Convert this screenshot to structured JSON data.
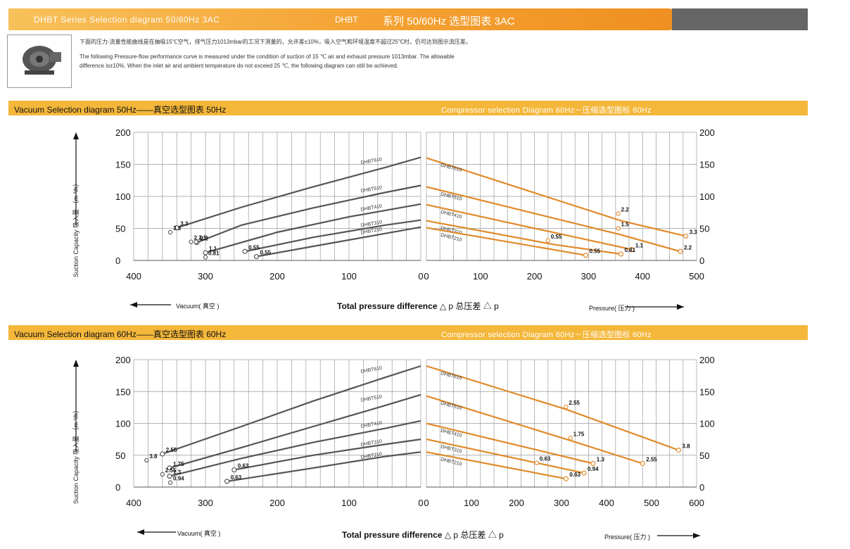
{
  "header": {
    "title_en": "DHBT Series Selection diagram 50/60Hz 3AC",
    "title_mid": "DHBT",
    "title_cn": "系列 50/60Hz 选型图表 3AC"
  },
  "intro": {
    "line_cn": "下面的压力-流量性能曲线是在抽吸15℃空气，排气压力1013mbar的工况下测量的，允许差±10%，吸入空气和环境温度不超过25℃时，仍可达到图示流压差。",
    "line_en1": "The following Pressure-flow performance curve is measured under the condition of suction of 15 ℃ air and exhaust pressure 1013mbar. The allowable",
    "line_en2": "difference is±10%. When the inlet air and ambient temperature do not exceed 25 ℃, the following diagram can still be achieved."
  },
  "colors": {
    "accent": "#f4b73a",
    "curve_vacuum": "#555555",
    "curve_pressure": "#e08a2a",
    "grid": "#9a9a9a"
  },
  "common": {
    "y_axis_label": "Suction Capacity 吸入量 （m ³/h）",
    "x_caption": "Total pressure difference",
    "x_caption_cn": "△ p 总压差 △ p",
    "vacuum_label": "Vacuum( 真空 )",
    "pressure_label": "Pressure( 压力 )"
  },
  "section50": {
    "left": "Vacuum Selection diagram 50Hz——真空选型图表 50Hz",
    "right": "Compressor selection Diagram 60Hz－压缩选型图标 60Hz"
  },
  "section60": {
    "left": "Vacuum Selection diagram 60Hz——真空选型图表 60Hz",
    "right": "Compressor selection Diagram 60Hz－压缩选型图标 60Hz"
  },
  "chart_data": [
    {
      "type": "line",
      "title": "Vacuum Selection diagram 50Hz——真空选型图表 50Hz",
      "xlabel": "Vacuum( 真空 )",
      "ylabel": "Suction Capacity 吸入量 （m ³/h）",
      "xlim": [
        400,
        0
      ],
      "ylim": [
        0,
        200
      ],
      "x_ticks": [
        400,
        300,
        200,
        100,
        0
      ],
      "y_ticks": [
        0,
        50,
        100,
        150,
        200
      ],
      "series": [
        {
          "name": "DHBT610",
          "x": [
            340,
            250,
            150,
            50,
            0
          ],
          "y": [
            51,
            83,
            115,
            145,
            161
          ],
          "end_label": "3.3"
        },
        {
          "name": "DHBT510",
          "x": [
            312,
            250,
            150,
            50,
            0
          ],
          "y": [
            28,
            55,
            82,
            106,
            117
          ],
          "end_label": "2.2"
        },
        {
          "name": "DHBT410",
          "x": [
            300,
            200,
            100,
            0
          ],
          "y": [
            12,
            44,
            68,
            88
          ],
          "end_label": "1.1"
        },
        {
          "name": "DHBT310",
          "x": [
            245,
            150,
            50,
            0
          ],
          "y": [
            14,
            36,
            55,
            63
          ],
          "end_label": "0.55"
        },
        {
          "name": "DHBT210",
          "x": [
            229,
            150,
            50,
            0
          ],
          "y": [
            6,
            22,
            42,
            52
          ],
          "end_label": "0.55"
        }
      ],
      "extra_labels": [
        {
          "text": "3.3",
          "x": 349,
          "y": 44
        },
        {
          "text": "2.2",
          "x": 320,
          "y": 29
        },
        {
          "text": "1.5",
          "x": 313,
          "y": 29
        },
        {
          "text": "0.81",
          "x": 300,
          "y": 5
        }
      ]
    },
    {
      "type": "line",
      "title": "Compressor selection Diagram 60Hz－压缩选型图标 60Hz",
      "xlabel": "Pressure( 压力 )",
      "ylabel": "",
      "xlim": [
        0,
        500
      ],
      "ylim": [
        0,
        200
      ],
      "x_ticks": [
        0,
        100,
        200,
        300,
        400,
        500
      ],
      "y_ticks": [
        0,
        50,
        100,
        150,
        200
      ],
      "series": [
        {
          "name": "DHBT610",
          "x": [
            0,
            360,
            480
          ],
          "y": [
            160,
            62,
            38
          ],
          "end_label": "3.3"
        },
        {
          "name": "DHBT510",
          "x": [
            0,
            360,
            470
          ],
          "y": [
            115,
            40,
            14
          ],
          "end_label": "2.2"
        },
        {
          "name": "DHBT410",
          "x": [
            0,
            380
          ],
          "y": [
            87,
            17
          ],
          "end_label": "1.1"
        },
        {
          "name": "DHBT310",
          "x": [
            0,
            235,
            360
          ],
          "y": [
            62,
            25,
            10
          ],
          "end_label": "0.81"
        },
        {
          "name": "DHBT210",
          "x": [
            0,
            295
          ],
          "y": [
            51,
            8
          ],
          "end_label": "0.55"
        }
      ],
      "extra_labels": [
        {
          "text": "2.2",
          "x": 355,
          "y": 73
        },
        {
          "text": "1.5",
          "x": 355,
          "y": 50
        },
        {
          "text": "0.55",
          "x": 225,
          "y": 31
        }
      ]
    },
    {
      "type": "line",
      "title": "Vacuum Selection diagram 60Hz——真空选型图表 60Hz",
      "xlabel": "Vacuum( 真空 )",
      "ylabel": "Suction Capacity 吸入量 （m ³/h）",
      "xlim": [
        400,
        0
      ],
      "ylim": [
        0,
        200
      ],
      "x_ticks": [
        400,
        300,
        200,
        100,
        0
      ],
      "y_ticks": [
        0,
        50,
        100,
        150,
        200
      ],
      "series": [
        {
          "name": "DHBT610",
          "x": [
            360,
            250,
            150,
            50,
            0
          ],
          "y": [
            52,
            95,
            135,
            172,
            190
          ],
          "end_label": "2.55"
        },
        {
          "name": "DHBT510",
          "x": [
            350,
            250,
            150,
            50,
            0
          ],
          "y": [
            30,
            62,
            95,
            128,
            145
          ],
          "end_label": "1.75"
        },
        {
          "name": "DHBT410",
          "x": [
            350,
            250,
            150,
            50,
            0
          ],
          "y": [
            17,
            45,
            70,
            92,
            104
          ],
          "end_label": "1.3"
        },
        {
          "name": "DHBT310",
          "x": [
            260,
            150,
            50,
            0
          ],
          "y": [
            27,
            50,
            67,
            75
          ],
          "end_label": "0.63"
        },
        {
          "name": "DHBT210",
          "x": [
            270,
            150,
            50,
            0
          ],
          "y": [
            9,
            30,
            48,
            55
          ],
          "end_label": "0.63"
        }
      ],
      "extra_labels": [
        {
          "text": "3.8",
          "x": 382,
          "y": 42
        },
        {
          "text": "2.55",
          "x": 360,
          "y": 20
        },
        {
          "text": "0.94",
          "x": 349,
          "y": 7
        }
      ]
    },
    {
      "type": "line",
      "title": "Compressor selection Diagram 60Hz－压缩选型图标 60Hz",
      "xlabel": "Pressure( 压力 )",
      "ylabel": "",
      "xlim": [
        0,
        600
      ],
      "ylim": [
        0,
        200
      ],
      "x_ticks": [
        0,
        100,
        200,
        300,
        400,
        500,
        600
      ],
      "y_ticks": [
        0,
        50,
        100,
        150,
        200
      ],
      "series": [
        {
          "name": "DHBT610",
          "x": [
            0,
            310,
            560
          ],
          "y": [
            190,
            122,
            58
          ],
          "end_label": "3.8"
        },
        {
          "name": "DHBT510",
          "x": [
            0,
            320,
            480
          ],
          "y": [
            143,
            73,
            37
          ],
          "end_label": "2.55"
        },
        {
          "name": "DHBT410",
          "x": [
            0,
            370
          ],
          "y": [
            100,
            37
          ],
          "end_label": "1.3"
        },
        {
          "name": "DHBT310",
          "x": [
            0,
            350
          ],
          "y": [
            75,
            22
          ],
          "end_label": "0.94"
        },
        {
          "name": "DHBT210",
          "x": [
            0,
            310
          ],
          "y": [
            55,
            13
          ],
          "end_label": "0.63"
        }
      ],
      "extra_labels": [
        {
          "text": "2.55",
          "x": 310,
          "y": 126
        },
        {
          "text": "1.75",
          "x": 320,
          "y": 77
        },
        {
          "text": "0.63",
          "x": 245,
          "y": 38
        }
      ]
    }
  ]
}
